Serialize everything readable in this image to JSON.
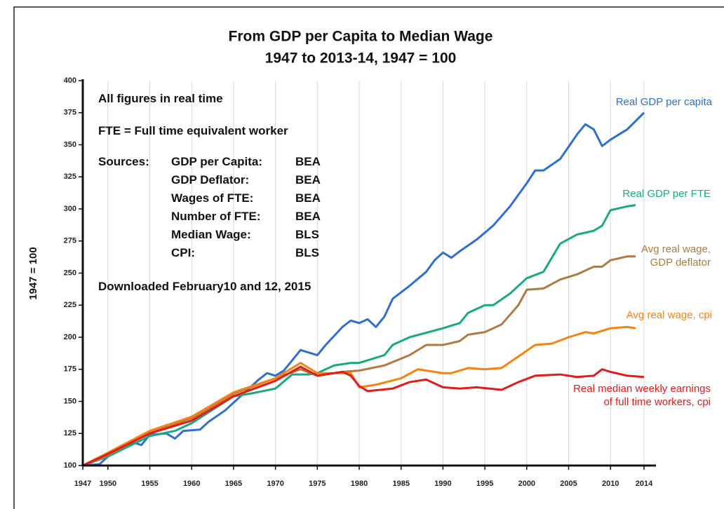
{
  "chart_data": {
    "type": "line",
    "title": "From GDP per Capita to Median Wage",
    "subtitle": "1947 to 2013-14, 1947 = 100",
    "ylabel": "1947 = 100",
    "notes": [
      "All figures in real time",
      "FTE = Full time equivalent worker"
    ],
    "sources_heading": "Sources:",
    "sources": [
      [
        "GDP per Capita:",
        "BEA"
      ],
      [
        "GDP Deflator:",
        "BEA"
      ],
      [
        "Wages of FTE:",
        "BEA"
      ],
      [
        "Number of FTE:",
        "BEA"
      ],
      [
        "Median Wage:",
        "BLS"
      ],
      [
        "CPI:",
        "BLS"
      ]
    ],
    "downloaded": "Downloaded February10 and 12, 2015",
    "xlim": [
      1947,
      2014
    ],
    "xticks": [
      1947,
      1950,
      1955,
      1960,
      1965,
      1970,
      1975,
      1980,
      1985,
      1990,
      1995,
      2000,
      2005,
      2010,
      2014
    ],
    "ylim": [
      100,
      400
    ],
    "yticks": [
      100,
      125,
      150,
      175,
      200,
      225,
      250,
      275,
      300,
      325,
      350,
      375,
      400
    ],
    "grid": true,
    "series": [
      {
        "name": "Real GDP per capita",
        "color": "#2f6fd0",
        "x": [
          1947,
          1949,
          1950,
          1951,
          1953,
          1954,
          1955,
          1957,
          1958,
          1959,
          1961,
          1962,
          1964,
          1966,
          1968,
          1969,
          1970,
          1971,
          1973,
          1975,
          1976,
          1978,
          1979,
          1980,
          1981,
          1982,
          1983,
          1984,
          1986,
          1988,
          1989,
          1990,
          1991,
          1992,
          1994,
          1996,
          1998,
          2000,
          2001,
          2002,
          2004,
          2006,
          2007,
          2008,
          2009,
          2010,
          2012,
          2014
        ],
        "values": [
          100,
          101,
          107,
          113,
          118,
          116,
          124,
          125,
          121,
          127,
          128,
          134,
          143,
          155,
          167,
          172,
          170,
          174,
          190,
          186,
          194,
          208,
          213,
          211,
          214,
          208,
          216,
          230,
          240,
          251,
          260,
          266,
          262,
          267,
          276,
          287,
          302,
          320,
          330,
          330,
          339,
          358,
          366,
          362,
          349,
          354,
          362,
          375
        ]
      },
      {
        "name": "Real GDP per FTE",
        "color": "#1aaa80",
        "x": [
          1947,
          1950,
          1955,
          1958,
          1960,
          1965,
          1967,
          1970,
          1972,
          1974,
          1975,
          1977,
          1979,
          1980,
          1981,
          1983,
          1984,
          1986,
          1990,
          1992,
          1993,
          1995,
          1996,
          1998,
          2000,
          2002,
          2004,
          2006,
          2008,
          2009,
          2010,
          2012,
          2013
        ],
        "values": [
          100,
          107,
          123,
          127,
          133,
          154,
          156,
          160,
          171,
          171,
          172,
          178,
          180,
          180,
          182,
          186,
          194,
          200,
          207,
          211,
          219,
          225,
          225,
          234,
          246,
          251,
          273,
          280,
          283,
          287,
          299,
          302,
          303
        ]
      },
      {
        "name": "Avg real wage,\nGDP deflator",
        "color": "#b07a40",
        "x": [
          1947,
          1950,
          1955,
          1960,
          1965,
          1970,
          1973,
          1975,
          1978,
          1980,
          1983,
          1986,
          1988,
          1990,
          1992,
          1993,
          1995,
          1997,
          1999,
          2000,
          2002,
          2004,
          2006,
          2008,
          2009,
          2010,
          2012,
          2013
        ],
        "values": [
          100,
          108,
          126,
          137,
          156,
          168,
          175,
          170,
          173,
          174,
          178,
          186,
          194,
          194,
          197,
          202,
          204,
          210,
          225,
          237,
          238,
          245,
          249,
          255,
          255,
          260,
          263,
          263
        ]
      },
      {
        "name": "Avg real wage, cpi",
        "color": "#f7820f",
        "x": [
          1947,
          1950,
          1955,
          1960,
          1965,
          1970,
          1973,
          1975,
          1977,
          1979,
          1980,
          1982,
          1985,
          1987,
          1990,
          1991,
          1993,
          1995,
          1997,
          1999,
          2001,
          2003,
          2005,
          2007,
          2008,
          2010,
          2012,
          2013
        ],
        "values": [
          100,
          110,
          127,
          138,
          157,
          168,
          180,
          172,
          172,
          172,
          161,
          163,
          168,
          175,
          172,
          172,
          176,
          175,
          176,
          185,
          194,
          195,
          200,
          204,
          203,
          207,
          208,
          207
        ]
      },
      {
        "name": "Real median weekly earnings\nof full time workers, cpi",
        "color": "#e21b1b",
        "x": [
          1947,
          1950,
          1955,
          1960,
          1965,
          1970,
          1973,
          1975,
          1978,
          1979,
          1980,
          1981,
          1984,
          1986,
          1988,
          1990,
          1992,
          1994,
          1997,
          1999,
          2001,
          2004,
          2006,
          2008,
          2009,
          2010,
          2012,
          2014
        ],
        "values": [
          100,
          109,
          125,
          135,
          154,
          166,
          177,
          170,
          173,
          170,
          162,
          158,
          160,
          165,
          167,
          161,
          160,
          161,
          159,
          165,
          170,
          171,
          169,
          170,
          175,
          173,
          170,
          169
        ]
      }
    ]
  }
}
